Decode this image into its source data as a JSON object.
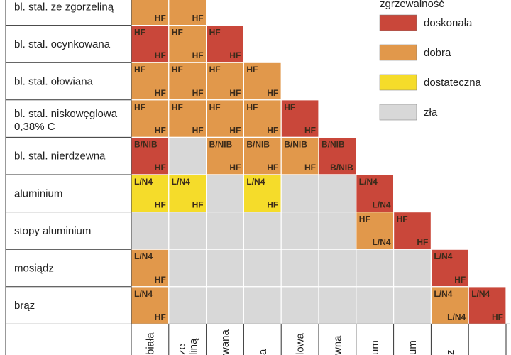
{
  "chart_data": {
    "type": "heatmap",
    "legend": {
      "title": "zgrzewalność",
      "placement": "top-right",
      "items": [
        {
          "key": "d",
          "label": "doskonała",
          "color": "#c9473a"
        },
        {
          "key": "b",
          "label": "dobra",
          "color": "#e1984b"
        },
        {
          "key": "s",
          "label": "dostateczna",
          "color": "#f5dc2a"
        },
        {
          "key": "z",
          "label": "zła",
          "color": "#d8d8d8"
        }
      ]
    },
    "rows": [
      {
        "label": "bl. stal. ze zgorzeliną"
      },
      {
        "label": "bl. stal. ocynkowana"
      },
      {
        "label": "bl. stal. ołowiana"
      },
      {
        "label": "bl. stal. niskowęglowa",
        "label2": "0,38% C"
      },
      {
        "label": "bl. stal. nierdzewna"
      },
      {
        "label": "aluminium"
      },
      {
        "label": "stopy aluminium"
      },
      {
        "label": "mosiądz"
      },
      {
        "label": "brąz"
      }
    ],
    "column_labels": [
      "biała",
      "ze\nliną",
      "wana",
      "a",
      "lowa",
      "wna",
      "um",
      "um",
      "z",
      ""
    ],
    "cells": [
      [
        {
          "c": "b",
          "t": "HF",
          "bt": "HF"
        },
        {
          "c": "b",
          "t": "HF",
          "bt": "HF"
        }
      ],
      [
        {
          "c": "d",
          "t": "HF",
          "bt": "HF"
        },
        {
          "c": "b",
          "t": "HF",
          "bt": "HF"
        },
        {
          "c": "d",
          "t": "HF",
          "bt": "HF"
        }
      ],
      [
        {
          "c": "b",
          "t": "HF",
          "bt": "HF"
        },
        {
          "c": "b",
          "t": "HF",
          "bt": "HF"
        },
        {
          "c": "b",
          "t": "HF",
          "bt": "HF"
        },
        {
          "c": "b",
          "t": "HF",
          "bt": "HF"
        }
      ],
      [
        {
          "c": "b",
          "t": "HF",
          "bt": "HF"
        },
        {
          "c": "b",
          "t": "HF",
          "bt": "HF"
        },
        {
          "c": "b",
          "t": "HF",
          "bt": "HF"
        },
        {
          "c": "b",
          "t": "HF",
          "bt": "HF"
        },
        {
          "c": "d",
          "t": "HF",
          "bt": "HF"
        }
      ],
      [
        {
          "c": "d",
          "t": "B/NIB",
          "bt": "HF"
        },
        {
          "c": "z",
          "t": "",
          "bt": ""
        },
        {
          "c": "b",
          "t": "B/NIB",
          "bt": "HF"
        },
        {
          "c": "b",
          "t": "B/NIB",
          "bt": "HF"
        },
        {
          "c": "b",
          "t": "B/NIB",
          "bt": "HF"
        },
        {
          "c": "d",
          "t": "B/NIB",
          "bt": "B/NIB"
        }
      ],
      [
        {
          "c": "s",
          "t": "L/N4",
          "bt": "HF"
        },
        {
          "c": "s",
          "t": "L/N4",
          "bt": "HF"
        },
        {
          "c": "z",
          "t": "",
          "bt": ""
        },
        {
          "c": "s",
          "t": "L/N4",
          "bt": "HF"
        },
        {
          "c": "z",
          "t": "",
          "bt": ""
        },
        {
          "c": "z",
          "t": "",
          "bt": ""
        },
        {
          "c": "d",
          "t": "L/N4",
          "bt": "L/N4"
        }
      ],
      [
        {
          "c": "z",
          "t": "",
          "bt": ""
        },
        {
          "c": "z",
          "t": "",
          "bt": ""
        },
        {
          "c": "z",
          "t": "",
          "bt": ""
        },
        {
          "c": "z",
          "t": "",
          "bt": ""
        },
        {
          "c": "z",
          "t": "",
          "bt": ""
        },
        {
          "c": "z",
          "t": "",
          "bt": ""
        },
        {
          "c": "b",
          "t": "HF",
          "bt": "L/N4"
        },
        {
          "c": "d",
          "t": "HF",
          "bt": "HF"
        }
      ],
      [
        {
          "c": "b",
          "t": "L/N4",
          "bt": "HF"
        },
        {
          "c": "z",
          "t": "",
          "bt": ""
        },
        {
          "c": "z",
          "t": "",
          "bt": ""
        },
        {
          "c": "z",
          "t": "",
          "bt": ""
        },
        {
          "c": "z",
          "t": "",
          "bt": ""
        },
        {
          "c": "z",
          "t": "",
          "bt": ""
        },
        {
          "c": "z",
          "t": "",
          "bt": ""
        },
        {
          "c": "z",
          "t": "",
          "bt": ""
        },
        {
          "c": "d",
          "t": "L/N4",
          "bt": "HF"
        }
      ],
      [
        {
          "c": "b",
          "t": "L/N4",
          "bt": "HF"
        },
        {
          "c": "z",
          "t": "",
          "bt": ""
        },
        {
          "c": "z",
          "t": "",
          "bt": ""
        },
        {
          "c": "z",
          "t": "",
          "bt": ""
        },
        {
          "c": "z",
          "t": "",
          "bt": ""
        },
        {
          "c": "z",
          "t": "",
          "bt": ""
        },
        {
          "c": "z",
          "t": "",
          "bt": ""
        },
        {
          "c": "z",
          "t": "",
          "bt": ""
        },
        {
          "c": "b",
          "t": "L/N4",
          "bt": "L/N4"
        },
        {
          "c": "d",
          "t": "L/N4",
          "bt": "HF"
        }
      ]
    ]
  }
}
